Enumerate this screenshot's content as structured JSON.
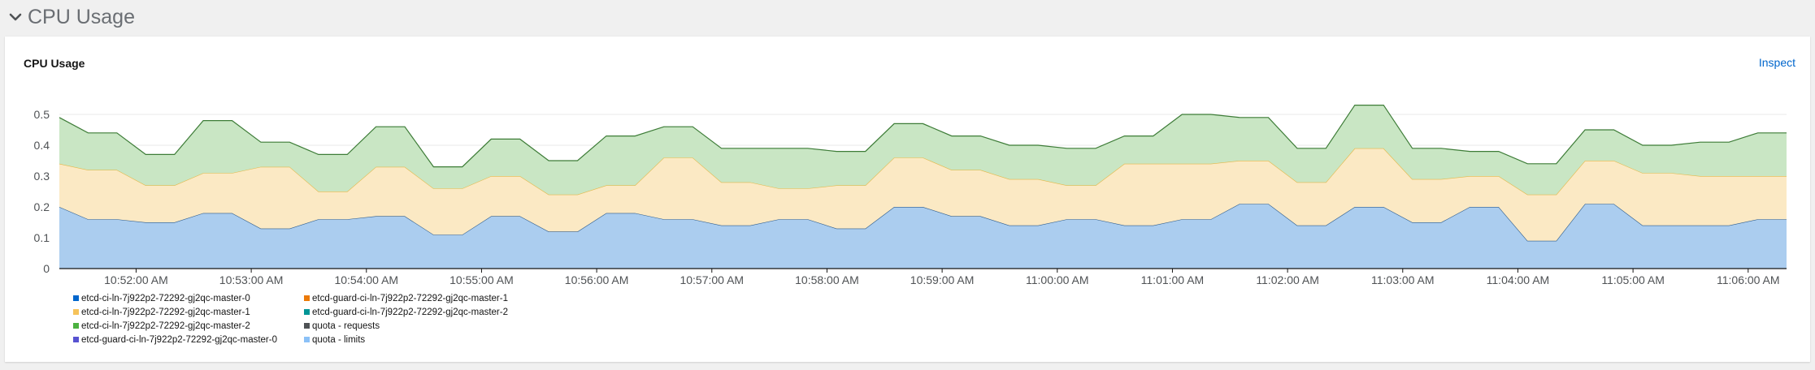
{
  "section": {
    "title": "CPU Usage",
    "chevron_icon": "chevron-down-icon"
  },
  "card": {
    "title": "CPU Usage",
    "inspect_label": "Inspect"
  },
  "chart_data": {
    "type": "area",
    "stacked": true,
    "title": "CPU Usage",
    "ylim": [
      0,
      0.5
    ],
    "y_ticks": [
      "0",
      "0.1",
      "0.2",
      "0.3",
      "0.4",
      "0.5"
    ],
    "x_range": [
      "10:51:20 AM",
      "11:06:20 AM"
    ],
    "x_ticks": [
      "10:52:00 AM",
      "10:53:00 AM",
      "10:54:00 AM",
      "10:55:00 AM",
      "10:56:00 AM",
      "10:57:00 AM",
      "10:58:00 AM",
      "10:59:00 AM",
      "11:00:00 AM",
      "11:01:00 AM",
      "11:02:00 AM",
      "11:03:00 AM",
      "11:04:00 AM",
      "11:05:00 AM",
      "11:06:00 AM"
    ],
    "grid": true,
    "legend_position": "bottom",
    "x": [
      "10:51:20",
      "10:51:35",
      "10:51:50",
      "10:52:05",
      "10:52:20",
      "10:52:35",
      "10:52:50",
      "10:53:05",
      "10:53:20",
      "10:53:35",
      "10:53:50",
      "10:54:05",
      "10:54:20",
      "10:54:35",
      "10:54:50",
      "10:55:05",
      "10:55:20",
      "10:55:35",
      "10:55:50",
      "10:56:05",
      "10:56:20",
      "10:56:35",
      "10:56:50",
      "10:57:05",
      "10:57:20",
      "10:57:35",
      "10:57:50",
      "10:58:05",
      "10:58:20",
      "10:58:35",
      "10:58:50",
      "10:59:05",
      "10:59:20",
      "10:59:35",
      "10:59:50",
      "11:00:05",
      "11:00:20",
      "11:00:35",
      "11:00:50",
      "11:01:05",
      "11:01:20",
      "11:01:35",
      "11:01:50",
      "11:02:05",
      "11:02:20",
      "11:02:35",
      "11:02:50",
      "11:03:05",
      "11:03:20",
      "11:03:35",
      "11:03:50",
      "11:04:05",
      "11:04:20",
      "11:04:35",
      "11:04:50",
      "11:05:05",
      "11:05:20",
      "11:05:35",
      "11:05:50",
      "11:06:05",
      "11:06:20"
    ],
    "series": [
      {
        "name": "etcd-ci-ln-7j922p2-72292-gj2qc-master-0",
        "color": "#abcdef",
        "stroke": "#2c5b8c",
        "values": [
          0.2,
          0.16,
          0.16,
          0.15,
          0.15,
          0.18,
          0.18,
          0.13,
          0.13,
          0.16,
          0.16,
          0.17,
          0.17,
          0.11,
          0.11,
          0.17,
          0.17,
          0.12,
          0.12,
          0.18,
          0.18,
          0.16,
          0.16,
          0.14,
          0.14,
          0.16,
          0.16,
          0.13,
          0.13,
          0.2,
          0.2,
          0.17,
          0.17,
          0.14,
          0.14,
          0.16,
          0.16,
          0.14,
          0.14,
          0.16,
          0.16,
          0.21,
          0.21,
          0.14,
          0.14,
          0.2,
          0.2,
          0.15,
          0.15,
          0.2,
          0.2,
          0.09,
          0.09,
          0.21,
          0.21,
          0.14,
          0.14,
          0.14,
          0.14,
          0.16,
          0.16
        ]
      },
      {
        "name": "etcd-ci-ln-7j922p2-72292-gj2qc-master-1",
        "color": "#fbe9c4",
        "stroke": "#e4b849",
        "values": [
          0.14,
          0.16,
          0.16,
          0.12,
          0.12,
          0.13,
          0.13,
          0.2,
          0.2,
          0.09,
          0.09,
          0.16,
          0.16,
          0.15,
          0.15,
          0.13,
          0.13,
          0.12,
          0.12,
          0.09,
          0.09,
          0.2,
          0.2,
          0.14,
          0.14,
          0.1,
          0.1,
          0.14,
          0.14,
          0.16,
          0.16,
          0.15,
          0.15,
          0.15,
          0.15,
          0.11,
          0.11,
          0.2,
          0.2,
          0.18,
          0.18,
          0.14,
          0.14,
          0.14,
          0.14,
          0.19,
          0.19,
          0.14,
          0.14,
          0.1,
          0.1,
          0.15,
          0.15,
          0.14,
          0.14,
          0.17,
          0.17,
          0.16,
          0.16,
          0.14,
          0.14
        ]
      },
      {
        "name": "etcd-ci-ln-7j922p2-72292-gj2qc-master-2",
        "color": "#c9e6c4",
        "stroke": "#3d7c37",
        "values": [
          0.15,
          0.12,
          0.12,
          0.1,
          0.1,
          0.17,
          0.17,
          0.08,
          0.08,
          0.12,
          0.12,
          0.13,
          0.13,
          0.07,
          0.07,
          0.12,
          0.12,
          0.11,
          0.11,
          0.16,
          0.16,
          0.1,
          0.1,
          0.11,
          0.11,
          0.13,
          0.13,
          0.11,
          0.11,
          0.11,
          0.11,
          0.11,
          0.11,
          0.11,
          0.11,
          0.12,
          0.12,
          0.09,
          0.09,
          0.16,
          0.16,
          0.14,
          0.14,
          0.11,
          0.11,
          0.14,
          0.14,
          0.1,
          0.1,
          0.08,
          0.08,
          0.1,
          0.1,
          0.1,
          0.1,
          0.09,
          0.09,
          0.11,
          0.11,
          0.14,
          0.14
        ]
      }
    ],
    "legend": [
      {
        "label": "etcd-ci-ln-7j922p2-72292-gj2qc-master-0",
        "color": "#06c"
      },
      {
        "label": "etcd-guard-ci-ln-7j922p2-72292-gj2qc-master-1",
        "color": "#ec7a08"
      },
      {
        "label": "etcd-ci-ln-7j922p2-72292-gj2qc-master-1",
        "color": "#f6c35b"
      },
      {
        "label": "etcd-guard-ci-ln-7j922p2-72292-gj2qc-master-2",
        "color": "#009596"
      },
      {
        "label": "etcd-ci-ln-7j922p2-72292-gj2qc-master-2",
        "color": "#4cb140"
      },
      {
        "label": "quota - requests",
        "color": "#4f5255"
      },
      {
        "label": "etcd-guard-ci-ln-7j922p2-72292-gj2qc-master-0",
        "color": "#5752d1"
      },
      {
        "label": "quota - limits",
        "color": "#8bc1f7"
      }
    ]
  }
}
